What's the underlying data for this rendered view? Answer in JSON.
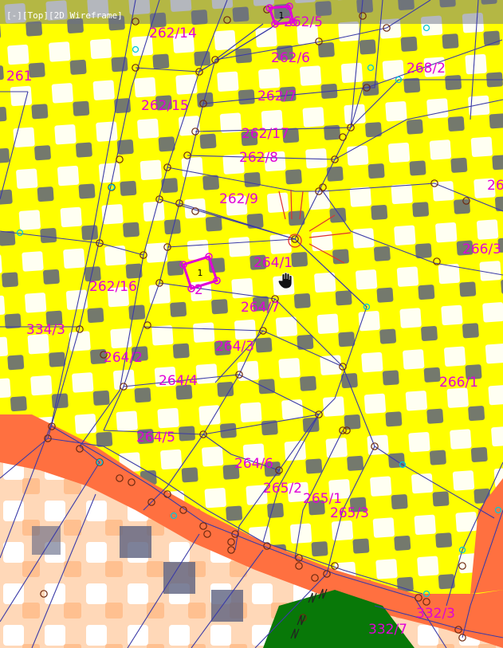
{
  "viewport_label": "[-][Top][2D Wireframe]",
  "parcel_labels": [
    "262/5",
    "262/14",
    "262/6",
    "268/2",
    "261",
    "262/7",
    "262/15",
    "262/17",
    "262/8",
    "26",
    "262/9",
    "266/3",
    "264/1",
    "262/16",
    "264/7",
    "334/3",
    "264/3",
    "264/2",
    "264/4",
    "266/1",
    "264/5",
    "264/6",
    "265/2",
    "265/1",
    "265/3",
    "332/3",
    "332/7",
    "2"
  ],
  "markers": [
    "1",
    "1"
  ],
  "colors": {
    "parcel_line": "#3a3aa8",
    "label": "#e000d8",
    "yellow_zone": "#ffff00",
    "gray_block": "#5c6280",
    "orange_road": "#ff7040",
    "peach_zone": "#ffc8a0",
    "green_zone": "#087808",
    "vertex_brown": "#6e2a10",
    "vertex_cyan": "#00c8d8",
    "selected_point": "#e03030"
  },
  "icons": [
    "hand-cursor-icon",
    "vertex-icon",
    "selection-marker-icon"
  ]
}
